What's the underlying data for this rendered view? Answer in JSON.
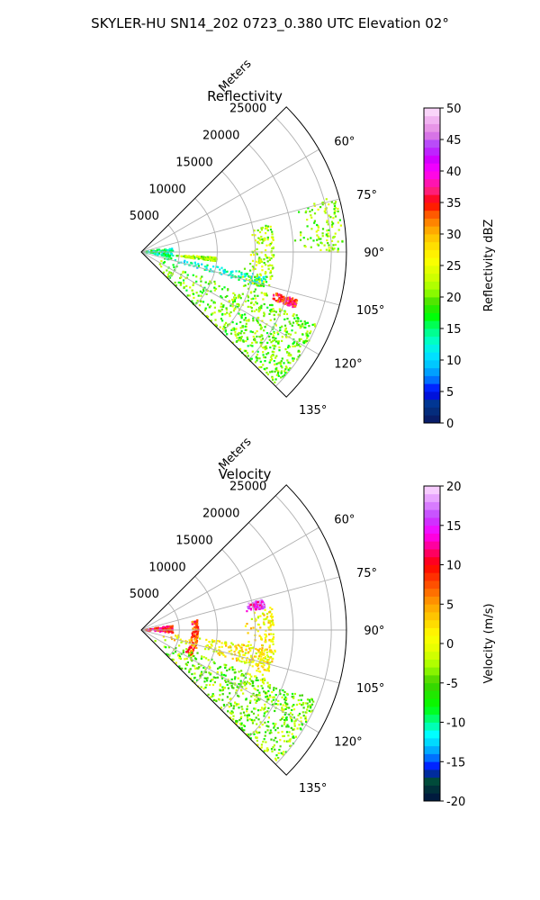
{
  "figure": {
    "title": "SKYLER-HU  SN14_202  0723_0.380 UTC Elevation 02°"
  },
  "chart_data": [
    {
      "type": "polar-sector",
      "title": "Reflectivity",
      "radial_label": "Meters",
      "radial_ticks": [
        5000,
        10000,
        15000,
        20000,
        25000
      ],
      "rmax": 27000,
      "azimuth_range_deg": [
        45,
        135
      ],
      "azimuth_ticks": [
        "60°",
        "75°",
        "90°",
        "105°",
        "120°",
        "135°"
      ],
      "colorbar": {
        "label": "Reflectivity dBZ",
        "range": [
          0,
          50
        ],
        "ticks": [
          "0",
          "5",
          "10",
          "15",
          "20",
          "25",
          "30",
          "35",
          "40",
          "45",
          "50"
        ]
      },
      "features": [
        {
          "name": "near-field clutter",
          "az": [
            82,
            100
          ],
          "r": [
            0,
            4200
          ],
          "value": 14
        },
        {
          "name": "main band",
          "az": [
            101,
            106
          ],
          "r": [
            1500,
            17000
          ],
          "value": 13
        },
        {
          "name": "southern band",
          "az": [
            112,
            135
          ],
          "r": [
            2000,
            25000
          ],
          "value": 20
        },
        {
          "name": "high streak",
          "az": [
            94,
            97
          ],
          "r": [
            4000,
            10000
          ],
          "value": 22
        },
        {
          "name": "curved line",
          "az": [
            78,
            113
          ],
          "r": [
            13500,
            17500
          ],
          "value": 22
        },
        {
          "name": "outer line",
          "az": [
            74,
            90
          ],
          "r": [
            20000,
            26500
          ],
          "value": 21
        },
        {
          "name": "core",
          "az": [
            107,
            110
          ],
          "r": [
            18000,
            21500
          ],
          "value": 35
        }
      ]
    },
    {
      "type": "polar-sector",
      "title": "Velocity",
      "radial_label": "Meters",
      "radial_ticks": [
        5000,
        10000,
        15000,
        20000,
        25000
      ],
      "rmax": 27000,
      "azimuth_range_deg": [
        45,
        135
      ],
      "azimuth_ticks": [
        "60°",
        "75°",
        "90°",
        "105°",
        "120°",
        "135°"
      ],
      "colorbar": {
        "label": "Velocity (m/s)",
        "range": [
          -20,
          20
        ],
        "ticks": [
          "-20",
          "-15",
          "-10",
          "-5",
          "0",
          "5",
          "10",
          "15",
          "20"
        ]
      },
      "features": [
        {
          "name": "near-field outbound",
          "az": [
            82,
            95
          ],
          "r": [
            0,
            4200
          ],
          "value": 10
        },
        {
          "name": "arc",
          "az": [
            80,
            118
          ],
          "r": [
            6500,
            7500
          ],
          "value": 8
        },
        {
          "name": "main band",
          "az": [
            98,
            108
          ],
          "r": [
            1500,
            18000
          ],
          "value": 1
        },
        {
          "name": "southern band",
          "az": [
            112,
            135
          ],
          "r": [
            2000,
            25000
          ],
          "value": -4
        },
        {
          "name": "curved line",
          "az": [
            80,
            113
          ],
          "r": [
            13500,
            17500
          ],
          "value": 1
        },
        {
          "name": "purple patch",
          "az": [
            76,
            80
          ],
          "r": [
            14000,
            16500
          ],
          "value": 15
        }
      ]
    }
  ]
}
